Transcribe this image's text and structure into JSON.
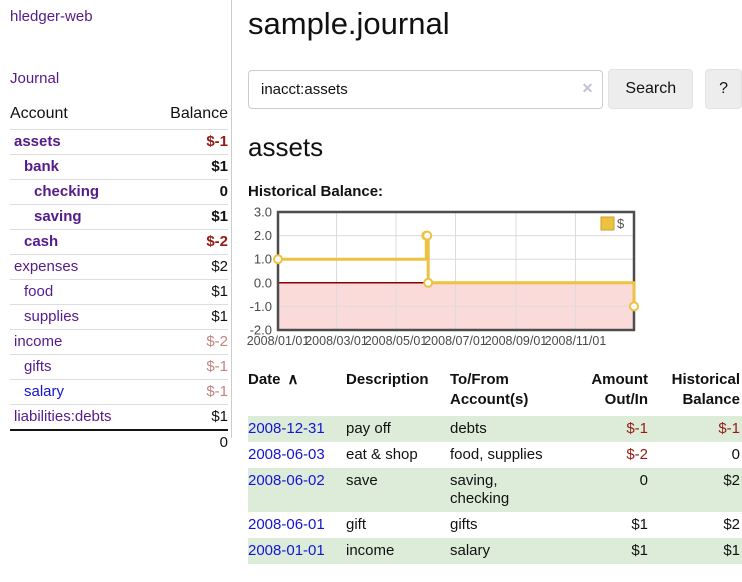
{
  "colors": {
    "link_visited": "#551a8b",
    "link_new": "#1414d6",
    "negative_strong": "#961a12",
    "negative_soft": "#c4837f",
    "row_highlight_green": "#dcecd9",
    "chart_line": "#edc240",
    "chart_negative_fill": "#fbdada",
    "chart_zero_line": "#8b0000",
    "chart_border": "#4d4d4d",
    "chart_grid": "#dcdcdc",
    "chart_text": "#4a4a4a"
  },
  "app": {
    "brand": "hledger-web",
    "nav_journal": "Journal"
  },
  "sidebar": {
    "header": {
      "account": "Account",
      "balance": "Balance"
    },
    "accounts": [
      {
        "name": "assets",
        "indent": 1,
        "balance": "$-1",
        "bold": true,
        "neg": "strong"
      },
      {
        "name": "bank",
        "indent": 2,
        "balance": "$1",
        "bold": true
      },
      {
        "name": "checking",
        "indent": 3,
        "balance": "0",
        "bold": true
      },
      {
        "name": "saving",
        "indent": 3,
        "balance": "$1",
        "bold": true
      },
      {
        "name": "cash",
        "indent": 2,
        "balance": "$-2",
        "bold": true,
        "neg": "strong"
      },
      {
        "name": "expenses",
        "indent": 1,
        "balance": "$2"
      },
      {
        "name": "food",
        "indent": 2,
        "balance": "$1"
      },
      {
        "name": "supplies",
        "indent": 2,
        "balance": "$1"
      },
      {
        "name": "income",
        "indent": 1,
        "balance": "$-2",
        "neg": "soft"
      },
      {
        "name": "gifts",
        "indent": 2,
        "balance": "$-1",
        "neg": "soft"
      },
      {
        "name": "salary",
        "indent": 2,
        "balance": "$-1",
        "neg": "soft",
        "unvisited": true
      },
      {
        "name": "liabilities:debts",
        "indent": 1,
        "balance": "$1"
      }
    ],
    "total": "0"
  },
  "main": {
    "title": "sample.journal",
    "search": {
      "value": "inacct:assets",
      "clear_icon": "✕",
      "button_label": "Search",
      "help_label": "?"
    },
    "account_title": "assets",
    "chart_heading": "Historical Balance:"
  },
  "chart_data": {
    "type": "line",
    "style": "step",
    "title": "Historical Balance:",
    "legend": [
      {
        "label": "$",
        "color": "#edc240"
      }
    ],
    "legend_position": "top-right",
    "grid": true,
    "negative_region_shaded": true,
    "x_range": [
      "2008-01-01",
      "2008-12-31"
    ],
    "ylim": [
      -2.0,
      3.0
    ],
    "yticks": [
      "3.0",
      "2.0",
      "1.0",
      "0.0",
      "-1.0",
      "-2.0"
    ],
    "xticks": [
      "2008/01/01",
      "2008/03/01",
      "2008/05/01",
      "2008/07/01",
      "2008/09/01",
      "2008/11/01"
    ],
    "series": [
      {
        "name": "$",
        "points": [
          {
            "x": "2008-01-01",
            "y": 1
          },
          {
            "x": "2008-06-01",
            "y": 2
          },
          {
            "x": "2008-06-02",
            "y": 2
          },
          {
            "x": "2008-06-03",
            "y": 0
          },
          {
            "x": "2008-12-31",
            "y": -1
          }
        ]
      }
    ]
  },
  "register": {
    "sort_icon": "∧",
    "columns": [
      "Date",
      "Description",
      "To/From Account(s)",
      "Amount Out/In",
      "Historical Balance"
    ],
    "rows": [
      {
        "date": "2008-12-31",
        "description": "pay off",
        "accounts": "debts",
        "amount": "$-1",
        "balance": "$-1",
        "amount_negative": true,
        "balance_negative": true
      },
      {
        "date": "2008-06-03",
        "description": "eat & shop",
        "accounts": "food, supplies",
        "amount": "$-2",
        "balance": "0",
        "amount_negative": true,
        "balance_negative": false
      },
      {
        "date": "2008-06-02",
        "description": "save",
        "accounts": "saving, checking",
        "amount": "0",
        "balance": "$2",
        "amount_negative": false,
        "balance_negative": false
      },
      {
        "date": "2008-06-01",
        "description": "gift",
        "accounts": "gifts",
        "amount": "$1",
        "balance": "$2",
        "amount_negative": false,
        "balance_negative": false
      },
      {
        "date": "2008-01-01",
        "description": "income",
        "accounts": "salary",
        "amount": "$1",
        "balance": "$1",
        "amount_negative": false,
        "balance_negative": false
      }
    ]
  }
}
